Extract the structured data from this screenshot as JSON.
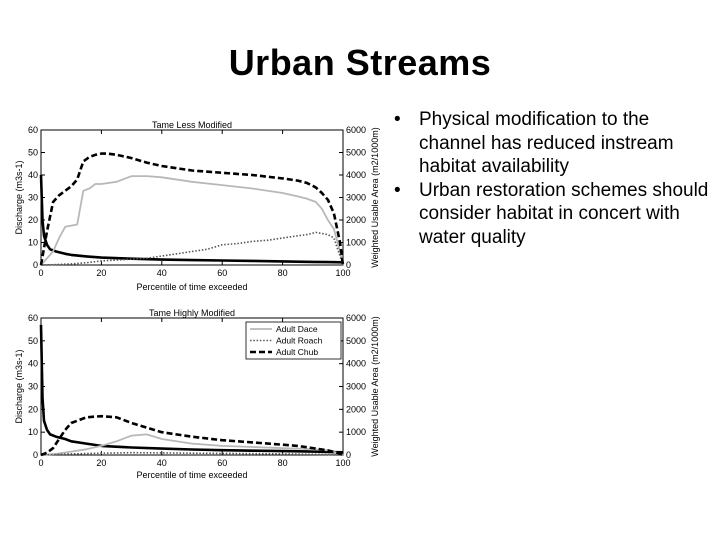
{
  "slide": {
    "title": "Urban Streams",
    "bullets": [
      "Physical modification to the channel has reduced instream habitat availability",
      "Urban restoration schemes should consider habitat in concert with water quality"
    ]
  },
  "chart_data": [
    {
      "type": "line",
      "title": "Tame Less Modified",
      "xlabel": "Percentile of time exceeded",
      "ylabel": "Discharge (m3s-1)",
      "y2label": "Weighted Usable Area (m2/1000m)",
      "xlim": [
        0,
        100
      ],
      "ylim": [
        0,
        60
      ],
      "y2lim": [
        0,
        6000
      ],
      "xticks": [
        0,
        20,
        40,
        60,
        80,
        100
      ],
      "yticks": [
        0,
        10,
        20,
        30,
        40,
        50,
        60
      ],
      "y2ticks": [
        0,
        1000,
        2000,
        3000,
        4000,
        5000,
        6000
      ],
      "grid": false,
      "series": [
        {
          "name": "Discharge",
          "axis": "left",
          "style": "solid-black",
          "x": [
            0,
            0.5,
            1,
            2,
            3,
            5,
            8,
            10,
            15,
            20,
            30,
            40,
            50,
            60,
            70,
            80,
            90,
            95,
            100
          ],
          "y": [
            40,
            20,
            13,
            9,
            7,
            6,
            5,
            4.5,
            3.8,
            3.3,
            2.8,
            2.4,
            2.2,
            2.0,
            1.8,
            1.6,
            1.4,
            1.3,
            1.2
          ]
        },
        {
          "name": "Adult Dace",
          "axis": "right",
          "style": "solid-grey",
          "x": [
            0,
            2,
            4,
            6,
            8,
            10,
            12,
            14,
            16,
            18,
            20,
            25,
            30,
            35,
            40,
            50,
            60,
            70,
            80,
            85,
            88,
            91,
            93,
            95,
            97,
            99,
            100
          ],
          "y": [
            0,
            300,
            600,
            1200,
            1700,
            1750,
            1800,
            3300,
            3400,
            3600,
            3600,
            3700,
            3950,
            3950,
            3900,
            3700,
            3550,
            3400,
            3200,
            3050,
            2950,
            2800,
            2500,
            2000,
            1600,
            600,
            0
          ]
        },
        {
          "name": "Adult Roach",
          "axis": "right",
          "style": "dotted",
          "x": [
            0,
            5,
            10,
            15,
            20,
            25,
            30,
            35,
            40,
            45,
            50,
            55,
            60,
            65,
            70,
            75,
            80,
            85,
            88,
            91,
            93,
            95,
            97,
            99,
            100
          ],
          "y": [
            0,
            20,
            50,
            100,
            180,
            220,
            260,
            300,
            400,
            500,
            600,
            700,
            900,
            950,
            1050,
            1100,
            1200,
            1300,
            1350,
            1450,
            1400,
            1350,
            1200,
            400,
            0
          ]
        },
        {
          "name": "Adult Chub",
          "axis": "right",
          "style": "dashed",
          "x": [
            0,
            2,
            4,
            6,
            8,
            10,
            12,
            14,
            16,
            18,
            20,
            22,
            25,
            30,
            35,
            40,
            50,
            60,
            70,
            80,
            85,
            88,
            91,
            93,
            95,
            97,
            99,
            100
          ],
          "y": [
            0,
            1500,
            2800,
            3100,
            3300,
            3500,
            3800,
            4600,
            4800,
            4900,
            4950,
            4950,
            4900,
            4750,
            4550,
            4400,
            4200,
            4100,
            4000,
            3850,
            3750,
            3650,
            3450,
            3200,
            2900,
            2300,
            1000,
            0
          ]
        }
      ]
    },
    {
      "type": "line",
      "title": "Tame Highly Modified",
      "xlabel": "Percentile of time exceeded",
      "ylabel": "Discharge (m3s-1)",
      "y2label": "Weighted Usable Area (m2/1000m)",
      "xlim": [
        0,
        100
      ],
      "ylim": [
        0,
        60
      ],
      "y2lim": [
        0,
        6000
      ],
      "xticks": [
        0,
        20,
        40,
        60,
        80,
        100
      ],
      "yticks": [
        0,
        10,
        20,
        30,
        40,
        50,
        60
      ],
      "y2ticks": [
        0,
        1000,
        2000,
        3000,
        4000,
        5000,
        6000
      ],
      "grid": false,
      "legend": {
        "position": "top-right"
      },
      "series": [
        {
          "name": "Discharge",
          "axis": "left",
          "style": "solid-black",
          "x": [
            0,
            0.5,
            1,
            2,
            3,
            5,
            8,
            10,
            15,
            20,
            30,
            40,
            50,
            60,
            70,
            80,
            90,
            95,
            100
          ],
          "y": [
            57,
            25,
            15,
            11,
            9,
            8,
            7,
            6,
            5,
            4,
            3.3,
            2.8,
            2.4,
            2.1,
            1.9,
            1.7,
            1.5,
            1.3,
            1.2
          ]
        },
        {
          "name": "Adult Dace",
          "axis": "right",
          "style": "solid-grey",
          "x": [
            0,
            5,
            10,
            15,
            20,
            25,
            30,
            35,
            40,
            50,
            60,
            70,
            80,
            85,
            90,
            95,
            98,
            100
          ],
          "y": [
            0,
            50,
            150,
            250,
            400,
            600,
            850,
            900,
            700,
            500,
            400,
            350,
            300,
            280,
            250,
            200,
            100,
            0
          ]
        },
        {
          "name": "Adult Roach",
          "axis": "right",
          "style": "dotted",
          "x": [
            0,
            10,
            20,
            30,
            40,
            50,
            60,
            70,
            80,
            90,
            100
          ],
          "y": [
            0,
            50,
            80,
            100,
            90,
            80,
            70,
            60,
            50,
            30,
            0
          ]
        },
        {
          "name": "Adult Chub",
          "axis": "right",
          "style": "dashed",
          "x": [
            0,
            2,
            4,
            6,
            8,
            10,
            12,
            15,
            20,
            25,
            30,
            35,
            40,
            50,
            60,
            70,
            80,
            85,
            90,
            95,
            98,
            100
          ],
          "y": [
            0,
            100,
            300,
            700,
            1100,
            1400,
            1500,
            1650,
            1700,
            1650,
            1400,
            1200,
            1000,
            800,
            650,
            550,
            450,
            400,
            300,
            200,
            100,
            0
          ]
        }
      ]
    }
  ]
}
